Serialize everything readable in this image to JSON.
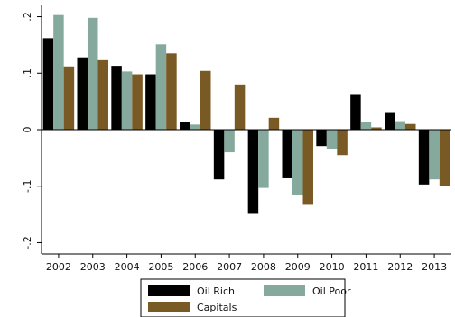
{
  "chart_data": {
    "type": "bar",
    "categories": [
      "2002",
      "2003",
      "2004",
      "2005",
      "2006",
      "2007",
      "2008",
      "2009",
      "2010",
      "2011",
      "2012",
      "2013"
    ],
    "series": [
      {
        "name": "Oil Rich",
        "color": "#000000",
        "values": [
          0.162,
          0.128,
          0.113,
          0.098,
          0.013,
          -0.088,
          -0.149,
          -0.086,
          -0.029,
          0.063,
          0.031,
          -0.097
        ]
      },
      {
        "name": "Oil Poor",
        "color": "#86a99e",
        "values": [
          0.203,
          0.198,
          0.103,
          0.151,
          0.009,
          -0.04,
          -0.103,
          -0.115,
          -0.035,
          0.014,
          0.015,
          -0.088
        ]
      },
      {
        "name": "Capitals",
        "color": "#7a5a24",
        "values": [
          0.112,
          0.123,
          0.098,
          0.135,
          0.104,
          0.08,
          0.021,
          -0.133,
          -0.045,
          0.004,
          0.01,
          -0.1
        ]
      }
    ],
    "yticks": [
      -0.2,
      -0.1,
      0,
      0.1,
      0.2
    ],
    "ytick_labels": [
      "-.2",
      "-.1",
      "0",
      ".1",
      ".2"
    ],
    "ylim": [
      -0.22,
      0.22
    ],
    "grid": false,
    "legend_position": "bottom"
  }
}
